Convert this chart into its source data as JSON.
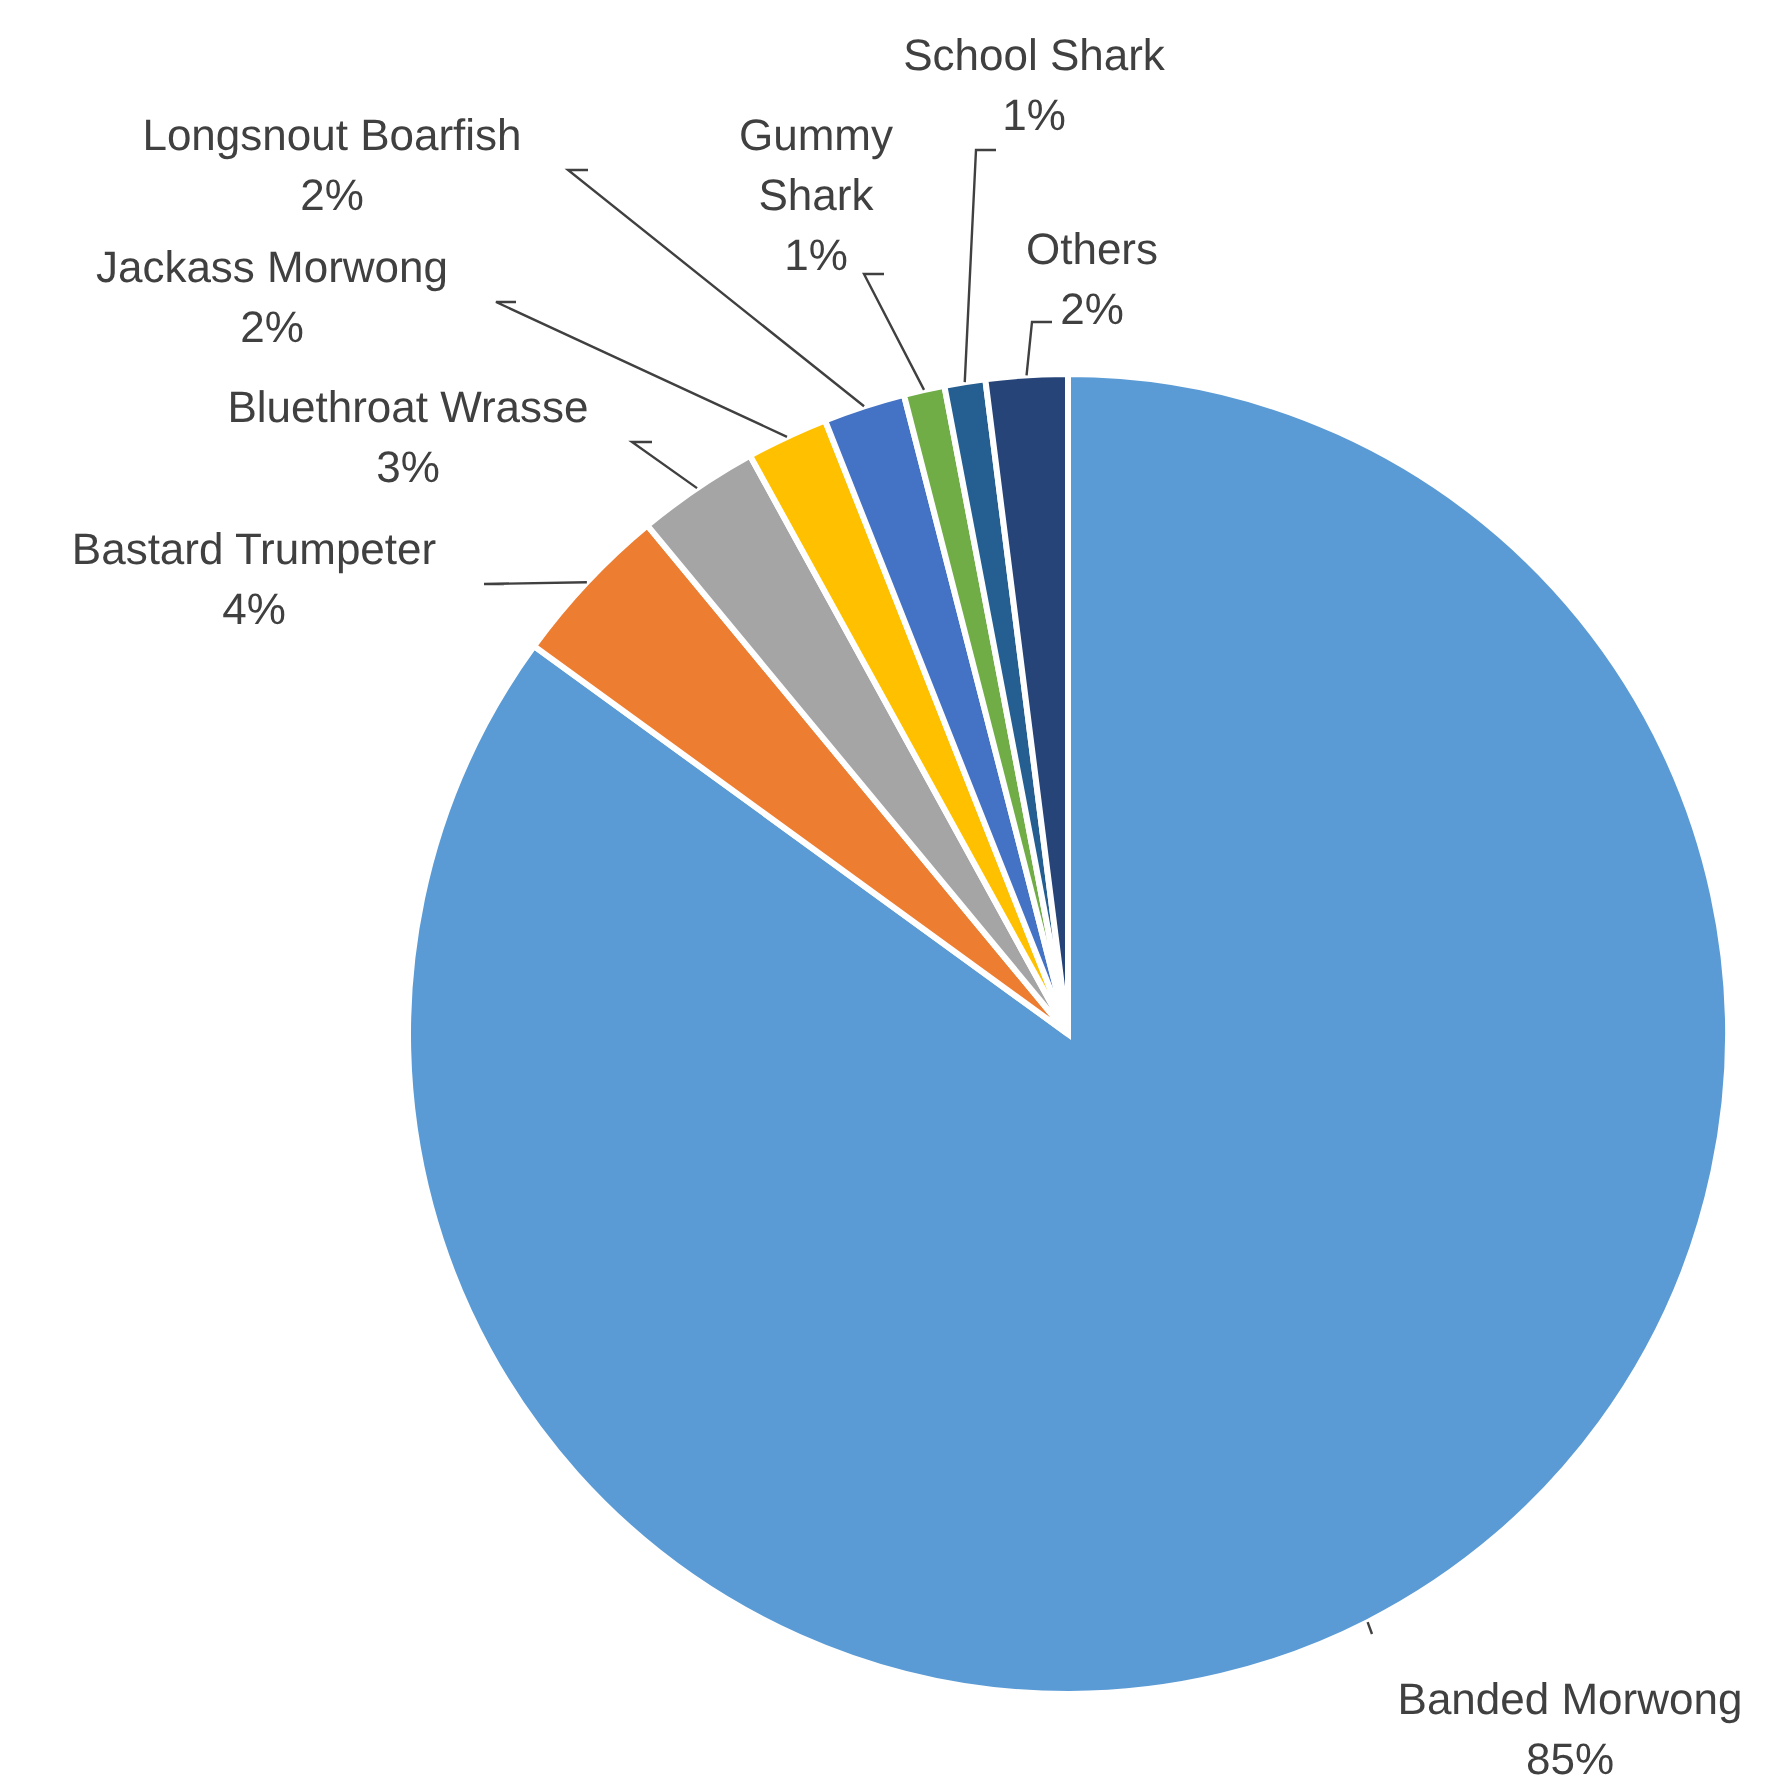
{
  "chart_data": {
    "type": "pie",
    "categories": [
      "Banded Morwong",
      "Bastard Trumpeter",
      "Bluethroat Wrasse",
      "Jackass Morwong",
      "Longsnout Boarfish",
      "Gummy Shark",
      "School Shark",
      "Others"
    ],
    "values": [
      85,
      4,
      3,
      2,
      2,
      1,
      1,
      2
    ],
    "value_labels": [
      "85%",
      "4%",
      "3%",
      "2%",
      "2%",
      "1%",
      "1%",
      "2%"
    ],
    "colors": [
      "#5b9bd5",
      "#ed7d31",
      "#a5a5a5",
      "#ffc000",
      "#4472c4",
      "#70ad47",
      "#255e91",
      "#264478"
    ],
    "legend": false
  }
}
